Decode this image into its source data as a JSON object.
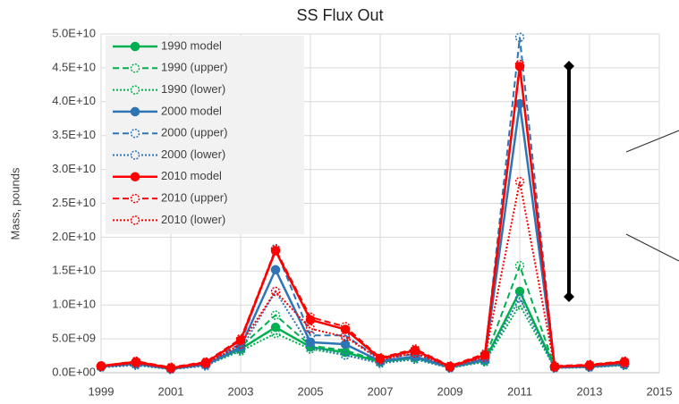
{
  "chart_data": {
    "type": "line",
    "title": "SS Flux Out",
    "y_label": "Mass, pounds",
    "x": [
      1999,
      2000,
      2001,
      2002,
      2003,
      2004,
      2005,
      2006,
      2007,
      2008,
      2009,
      2010,
      2011,
      2012,
      2013,
      2014
    ],
    "xlim": [
      1999,
      2015
    ],
    "xticks": [
      1999,
      2001,
      2003,
      2005,
      2007,
      2009,
      2011,
      2013,
      2015
    ],
    "ylim": [
      0,
      50000000000
    ],
    "yticks": [
      {
        "value": 0,
        "label": "0.0E+00"
      },
      {
        "value": 5000000000,
        "label": "5.0E+09"
      },
      {
        "value": 10000000000,
        "label": "1.0E+10"
      },
      {
        "value": 15000000000,
        "label": "1.5E+10"
      },
      {
        "value": 20000000000,
        "label": "2.0E+10"
      },
      {
        "value": 25000000000,
        "label": "2.5E+10"
      },
      {
        "value": 30000000000,
        "label": "3.0E+10"
      },
      {
        "value": 35000000000,
        "label": "3.5E+10"
      },
      {
        "value": 40000000000,
        "label": "4.0E+10"
      },
      {
        "value": 45000000000,
        "label": "4.5E+10"
      },
      {
        "value": 50000000000,
        "label": "5.0E+10"
      }
    ],
    "grid": true,
    "legend": "upper left",
    "series": [
      {
        "name": "1990 model",
        "color": "#00b050",
        "style": "solid",
        "values": [
          900000000,
          1300000000,
          600000000,
          1200000000,
          3500000000,
          6700000000,
          3800000000,
          3000000000,
          1600000000,
          2200000000,
          800000000,
          1800000000,
          12000000000,
          800000000,
          900000000,
          1200000000
        ]
      },
      {
        "name": "1990 (upper)",
        "color": "#00b050",
        "style": "dashed",
        "values": [
          900000000,
          1400000000,
          600000000,
          1300000000,
          3800000000,
          8500000000,
          4000000000,
          3300000000,
          1700000000,
          2400000000,
          800000000,
          2000000000,
          15800000000,
          800000000,
          1000000000,
          1300000000
        ]
      },
      {
        "name": "1990 (lower)",
        "color": "#00b050",
        "style": "dotted",
        "values": [
          800000000,
          1200000000,
          500000000,
          1100000000,
          3200000000,
          5800000000,
          3500000000,
          2600000000,
          1400000000,
          2000000000,
          700000000,
          1600000000,
          10000000000,
          700000000,
          800000000,
          1100000000
        ]
      },
      {
        "name": "2000 model",
        "color": "#2e75b6",
        "style": "solid",
        "values": [
          900000000,
          1300000000,
          600000000,
          1200000000,
          3800000000,
          15200000000,
          4500000000,
          4200000000,
          1700000000,
          2400000000,
          800000000,
          2000000000,
          39700000000,
          800000000,
          900000000,
          1300000000
        ]
      },
      {
        "name": "2000 (upper)",
        "color": "#2e75b6",
        "style": "dashed",
        "values": [
          1000000000,
          1500000000,
          700000000,
          1400000000,
          4300000000,
          18300000000,
          5500000000,
          5500000000,
          2000000000,
          2800000000,
          900000000,
          2400000000,
          49500000000,
          900000000,
          1100000000,
          1500000000
        ]
      },
      {
        "name": "2000 (lower)",
        "color": "#2e75b6",
        "style": "dotted",
        "values": [
          800000000,
          1100000000,
          500000000,
          1000000000,
          3400000000,
          12000000000,
          3800000000,
          2600000000,
          1400000000,
          2000000000,
          700000000,
          1700000000,
          11000000000,
          700000000,
          800000000,
          1100000000
        ]
      },
      {
        "name": "2010 model",
        "color": "#ff0000",
        "style": "solid",
        "values": [
          1000000000,
          1600000000,
          700000000,
          1500000000,
          4800000000,
          18000000000,
          7800000000,
          6400000000,
          2100000000,
          3300000000,
          900000000,
          2600000000,
          45200000000,
          900000000,
          1100000000,
          1600000000
        ]
      },
      {
        "name": "2010 (upper)",
        "color": "#ff0000",
        "style": "dashed",
        "values": [
          1000000000,
          1700000000,
          800000000,
          1600000000,
          5000000000,
          18200000000,
          8200000000,
          6800000000,
          2200000000,
          3500000000,
          1000000000,
          2800000000,
          45500000000,
          1000000000,
          1200000000,
          1700000000
        ]
      },
      {
        "name": "2010 (lower)",
        "color": "#ff0000",
        "style": "dotted",
        "values": [
          900000000,
          1400000000,
          600000000,
          1300000000,
          4200000000,
          12000000000,
          6500000000,
          5300000000,
          1900000000,
          2900000000,
          800000000,
          2300000000,
          28200000000,
          800000000,
          1000000000,
          1400000000
        ]
      }
    ]
  }
}
